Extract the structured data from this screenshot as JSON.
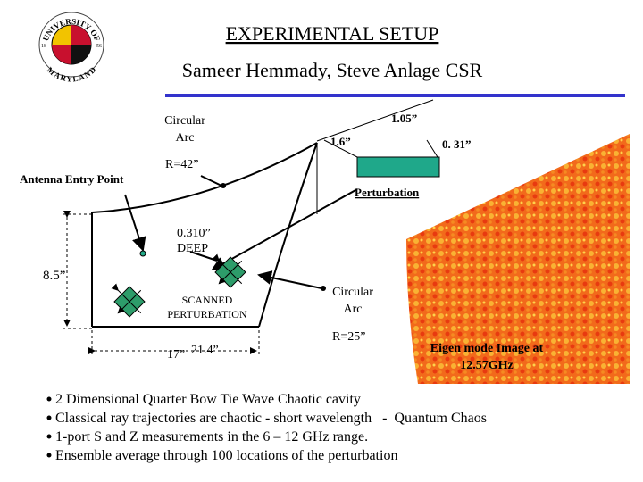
{
  "header": {
    "title": "EXPERIMENTAL SETUP",
    "authors": "Sameer Hemmady, Steve Anlage CSR"
  },
  "logo": {
    "top": "UNIVERSITY OF",
    "bottom": "MARYLAND",
    "left": "18",
    "right": "56"
  },
  "diagram": {
    "arc_top": {
      "lines": [
        "Circular",
        "Arc"
      ]
    },
    "dim_105": "1.05”",
    "dim_16": "1.6”",
    "dim_031": "0. 31”",
    "r42": "R=42”",
    "antenna": "Antenna Entry Point",
    "perturbation": "Perturbation",
    "deep": {
      "lines": [
        "0.310”",
        "DEEP"
      ]
    },
    "height": "8.5”",
    "scanned": {
      "lines": [
        "SCANNED",
        "PERTURBATION"
      ]
    },
    "arc_right": {
      "lines": [
        "Circular",
        "Arc"
      ]
    },
    "r25": "R=25”",
    "w17": "17”",
    "w214": "21.4”",
    "eigen": {
      "lines": [
        "Eigen mode Image at",
        "12.57GHz"
      ]
    }
  },
  "bullets": [
    "2 Dimensional Quarter Bow Tie Wave Chaotic cavity",
    "Classical ray trajectories are chaotic - short wavelength   -  Quantum Chaos",
    "1-port S and Z measurements in the 6 – 12 GHz range.",
    "Ensemble average through 100 locations of the perturbation"
  ]
}
